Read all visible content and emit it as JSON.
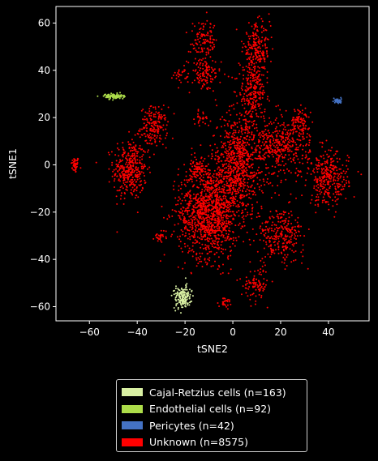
{
  "chart_data": {
    "type": "scatter",
    "xlabel": "tSNE2",
    "ylabel": "tSNE1",
    "xlim": [
      -74,
      57
    ],
    "ylim": [
      -66,
      67
    ],
    "x_ticks": [
      -60,
      -40,
      -20,
      0,
      20,
      40
    ],
    "y_ticks": [
      -60,
      -40,
      -20,
      0,
      20,
      40,
      60
    ],
    "grid": false,
    "legend_position": "bottom-center (below plot)",
    "background": "#000000",
    "series": [
      {
        "name": "Cajal-Retzius cells (n=163)",
        "color": "#d9f0a3",
        "count": 163,
        "clusters": [
          {
            "center": [
              -21,
              -56
            ],
            "spread": [
              2.5,
              3.5
            ]
          }
        ]
      },
      {
        "name": "Endothelial cells (n=92)",
        "color": "#addd4a",
        "count": 92,
        "clusters": [
          {
            "center": [
              -50,
              29
            ],
            "spread": [
              3,
              0.8
            ]
          }
        ]
      },
      {
        "name": "Pericytes (n=42)",
        "color": "#4472c4",
        "count": 42,
        "clusters": [
          {
            "center": [
              44,
              27
            ],
            "spread": [
              1,
              0.8
            ]
          }
        ]
      },
      {
        "name": "Unknown (n=8575)",
        "color": "#ff0000",
        "count": 8575,
        "clusters": [
          {
            "center": [
              -66,
              0
            ],
            "spread": [
              1.2,
              2.5
            ],
            "weight": 0.01
          },
          {
            "center": [
              -43,
              -2
            ],
            "spread": [
              5,
              9
            ],
            "weight": 0.08
          },
          {
            "center": [
              -33,
              16
            ],
            "spread": [
              4,
              6
            ],
            "weight": 0.04
          },
          {
            "center": [
              -30,
              -30
            ],
            "spread": [
              2,
              2
            ],
            "weight": 0.006
          },
          {
            "center": [
              -22,
              38
            ],
            "spread": [
              2,
              2
            ],
            "weight": 0.005
          },
          {
            "center": [
              -12,
              38
            ],
            "spread": [
              5,
              5
            ],
            "weight": 0.025
          },
          {
            "center": [
              -13,
              20
            ],
            "spread": [
              2,
              2
            ],
            "weight": 0.006
          },
          {
            "center": [
              -15,
              -2
            ],
            "spread": [
              3,
              3
            ],
            "weight": 0.015
          },
          {
            "center": [
              -10,
              -20
            ],
            "spread": [
              9,
              14
            ],
            "weight": 0.25
          },
          {
            "center": [
              2,
              0
            ],
            "spread": [
              8,
              15
            ],
            "weight": 0.17
          },
          {
            "center": [
              10,
              48
            ],
            "spread": [
              4,
              8
            ],
            "weight": 0.05
          },
          {
            "center": [
              -12,
              52
            ],
            "spread": [
              4,
              6
            ],
            "weight": 0.025
          },
          {
            "center": [
              8,
              30
            ],
            "spread": [
              4,
              8
            ],
            "weight": 0.05
          },
          {
            "center": [
              20,
              8
            ],
            "spread": [
              9,
              9
            ],
            "weight": 0.09
          },
          {
            "center": [
              40,
              -6
            ],
            "spread": [
              6,
              8
            ],
            "weight": 0.07
          },
          {
            "center": [
              20,
              -30
            ],
            "spread": [
              7,
              8
            ],
            "weight": 0.06
          },
          {
            "center": [
              10,
              -50
            ],
            "spread": [
              4,
              5
            ],
            "weight": 0.02
          },
          {
            "center": [
              -3,
              -58
            ],
            "spread": [
              2,
              1.5
            ],
            "weight": 0.006
          },
          {
            "center": [
              28,
              18
            ],
            "spread": [
              3,
              4
            ],
            "weight": 0.02
          }
        ]
      }
    ]
  }
}
